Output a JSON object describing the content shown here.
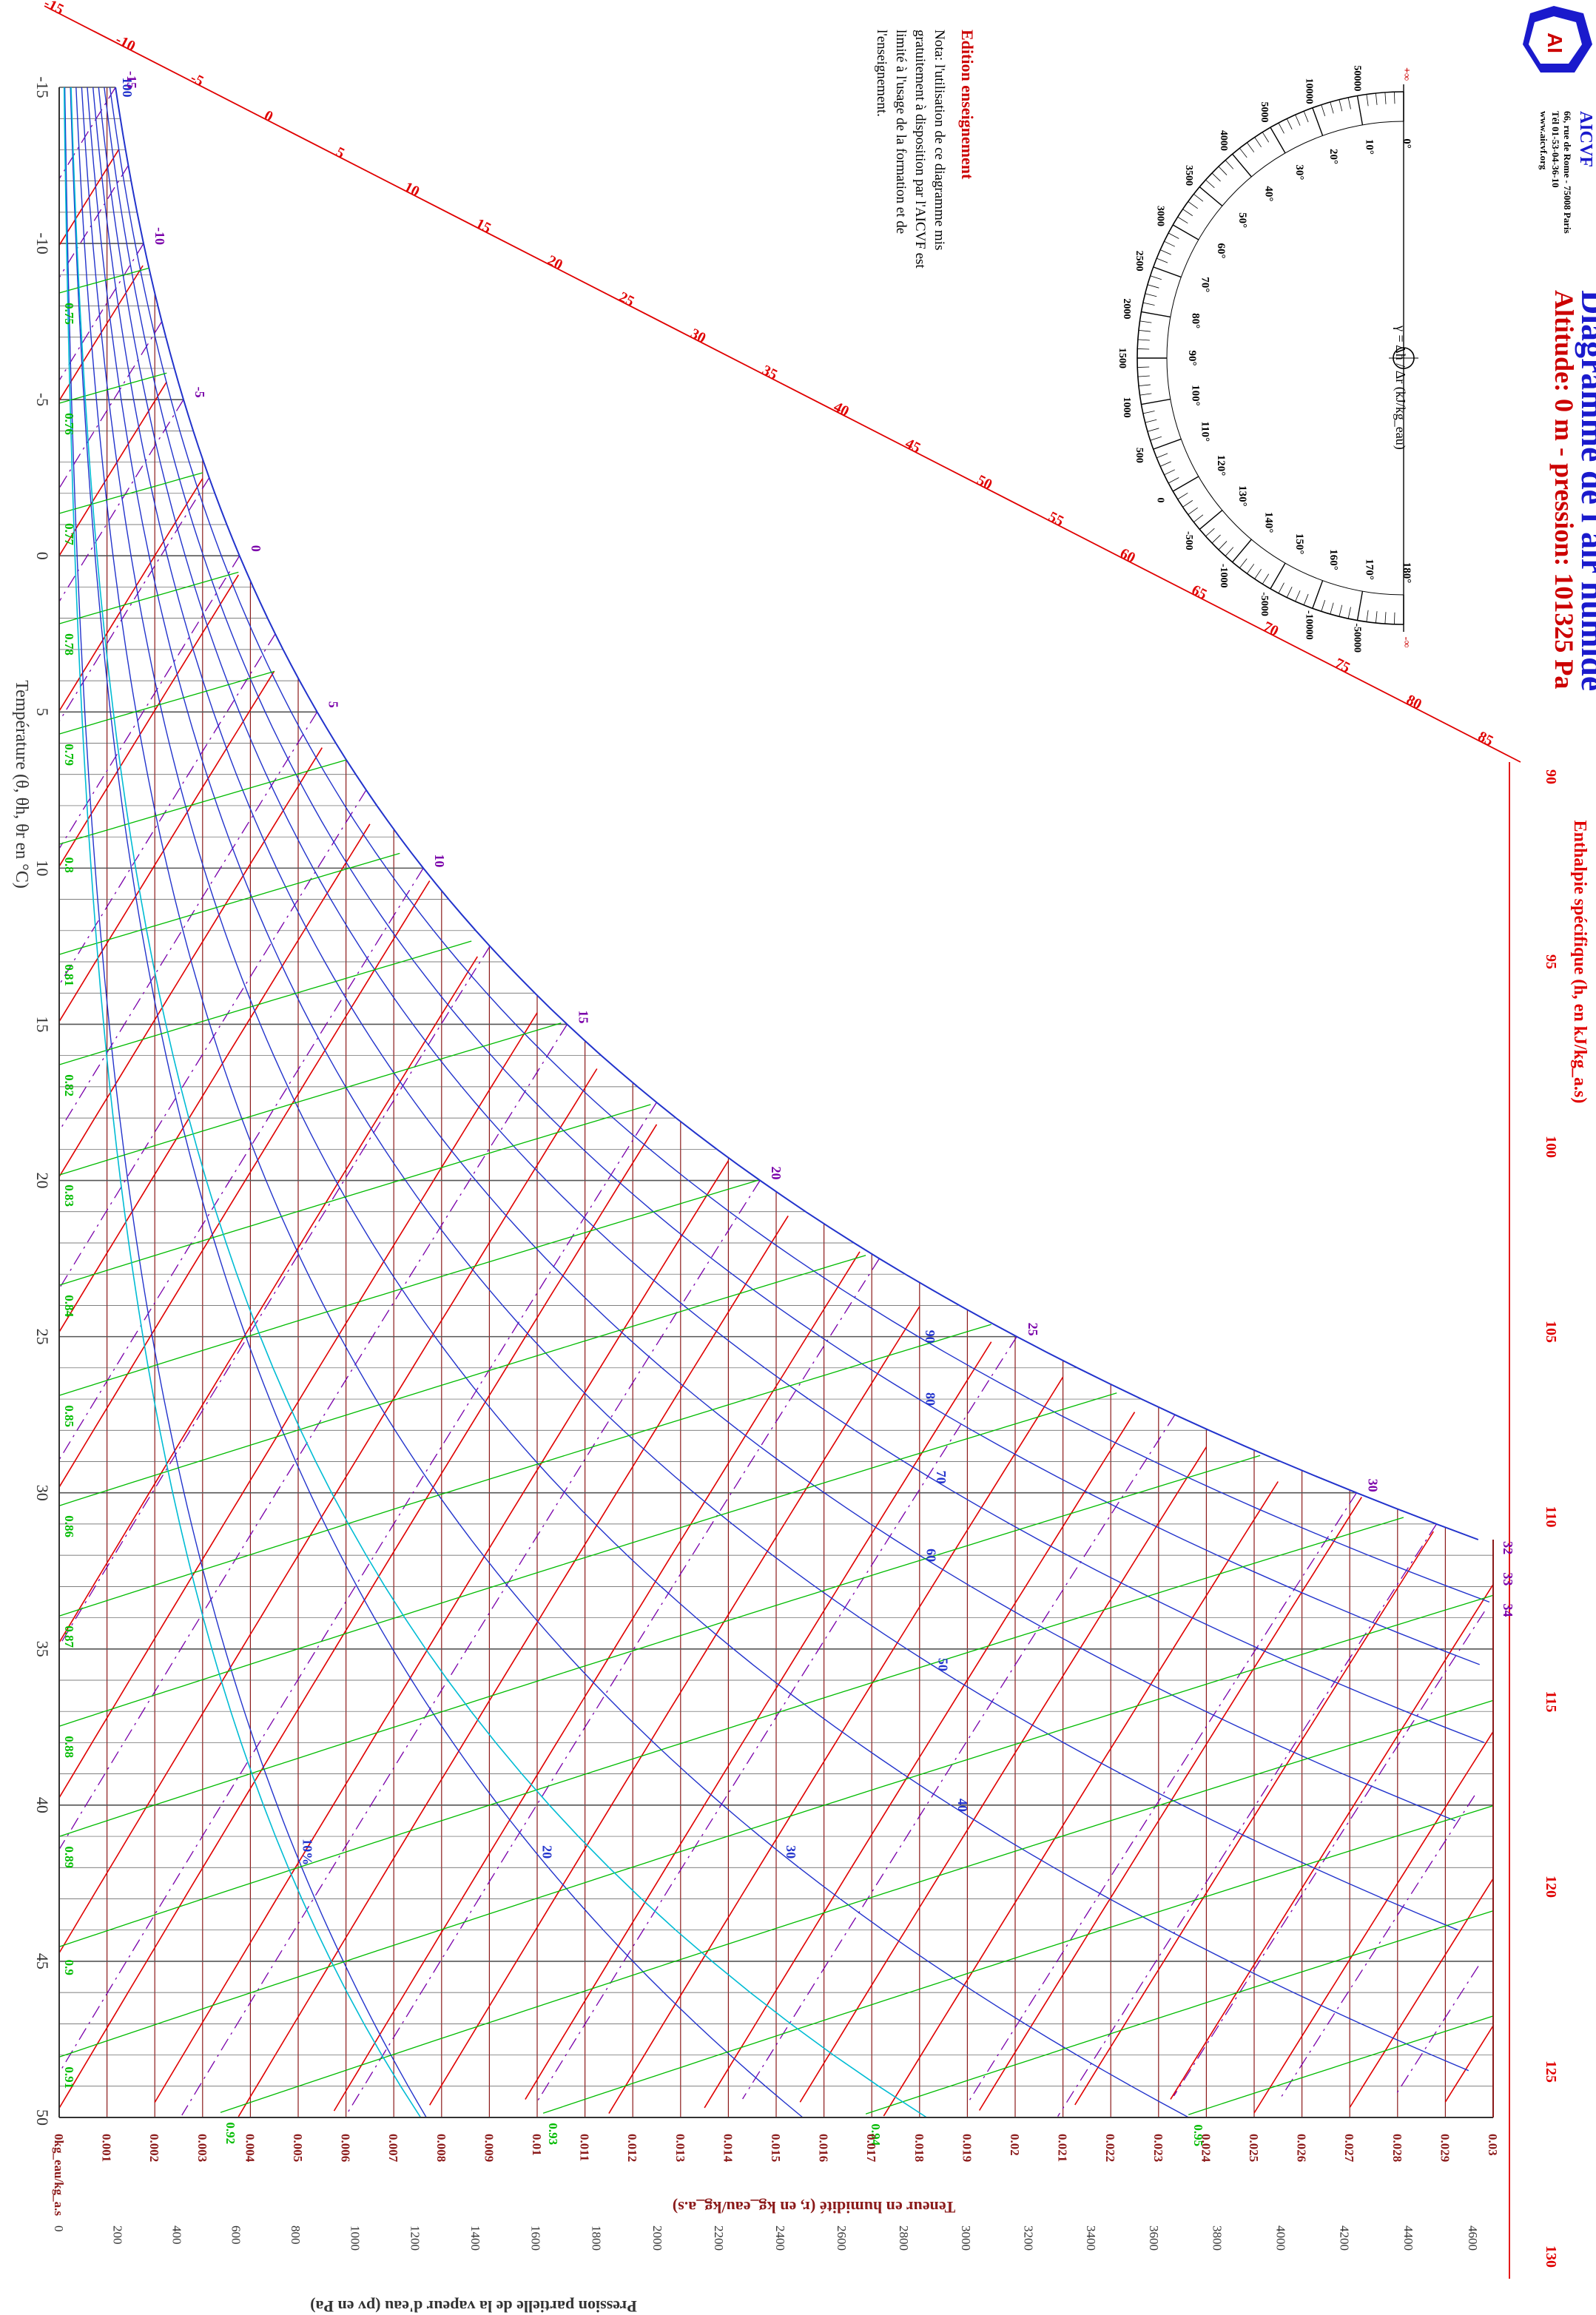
{
  "header": {
    "title": "Diagramme de l'air humide",
    "subtitle": "Altitude: 0 m - pression: 101325 Pa",
    "org": "AICVF",
    "address": [
      "66, rue de Rome - 75008 Paris",
      "Tél 01-53-04-36-10",
      "www.aicvf.org"
    ]
  },
  "notice": {
    "title": "Edition enseignement",
    "text": "Nota: l'utilisation de ce diagramme mis gratuitement à disposition par l'AICVF est limité à l'usage de la formation et de l'enseignement."
  },
  "protractor": {
    "formula": "γ = Δh / Δr (kJ/kg_eau)",
    "degree_labels": [
      "0°",
      "10°",
      "20°",
      "30°",
      "40°",
      "50°",
      "60°",
      "70°",
      "80°",
      "90°",
      "100°",
      "110°",
      "120°",
      "130°",
      "140°",
      "150°",
      "160°",
      "170°",
      "180°"
    ],
    "gamma_labels": [
      "+∞",
      "50000",
      "10000",
      "5000",
      "4000",
      "3500",
      "3000",
      "2500",
      "2000",
      "1500",
      "1000",
      "500",
      "0",
      "-500",
      "-1000",
      "-5000",
      "-10000",
      "-50000",
      "-∞"
    ]
  },
  "chart_data": {
    "type": "psychrometric",
    "title": "Diagramme de l'air humide",
    "axes": {
      "temperature": {
        "label": "Température (θ, θh, θr en °C)",
        "range": [
          -15,
          50
        ],
        "ticks": [
          -15,
          -10,
          -5,
          0,
          5,
          10,
          15,
          20,
          25,
          30,
          35,
          40,
          45,
          50
        ]
      },
      "humidity_ratio": {
        "label": "Teneur en humidité (r, en kg_eau/kg_a.s)",
        "range": [
          0,
          0.03
        ],
        "ticks": [
          "0kg_eau/kg_a.s",
          "0.001",
          "0.002",
          "0.003",
          "0.004",
          "0.005",
          "0.006",
          "0.007",
          "0.008",
          "0.009",
          "0.01",
          "0.011",
          "0.012",
          "0.013",
          "0.014",
          "0.015",
          "0.016",
          "0.017",
          "0.018",
          "0.019",
          "0.02",
          "0.021",
          "0.022",
          "0.023",
          "0.024",
          "0.025",
          "0.026",
          "0.027",
          "0.028",
          "0.029",
          "0.03"
        ]
      },
      "vapor_pressure": {
        "label": "Pression partielle de la vapeur d'eau (pv en Pa)",
        "range": [
          0,
          4600
        ],
        "ticks": [
          "0",
          "200",
          "400",
          "600",
          "800",
          "1000",
          "1200",
          "1400",
          "1600",
          "1800",
          "2000",
          "2200",
          "2400",
          "2600",
          "2800",
          "3000",
          "3200",
          "3400",
          "3600",
          "3800",
          "4000",
          "4200",
          "4400",
          "4600"
        ]
      },
      "enthalpy": {
        "label": "Enthalpie spécifique (h, en kJ/kg_a.s)",
        "diagonal_ticks": [
          "-15",
          "-10",
          "-5",
          "0",
          "5",
          "10",
          "15",
          "20",
          "25",
          "30",
          "35",
          "40",
          "45",
          "50",
          "55",
          "60",
          "65",
          "70",
          "75",
          "80",
          "85"
        ],
        "right_ticks": [
          "90",
          "95",
          "100",
          "105",
          "110",
          "115",
          "120",
          "125",
          "130"
        ]
      }
    },
    "relative_humidity": {
      "values": [
        10,
        20,
        30,
        40,
        50,
        60,
        70,
        80,
        90,
        100
      ],
      "labels": [
        "10%",
        "20",
        "30",
        "40",
        "50",
        "60",
        "70",
        "80",
        "90",
        "100"
      ]
    },
    "wet_bulb_labels": [
      "-15",
      "-10",
      "-5",
      "0",
      "5",
      "10",
      "15",
      "20",
      "25",
      "30",
      "32",
      "33",
      "34"
    ],
    "specific_volume_labels": [
      "0.75",
      "0.76",
      "0.77",
      "0.78",
      "0.79",
      "0.8",
      "0.81",
      "0.82",
      "0.83",
      "0.84",
      "0.85",
      "0.86",
      "0.87",
      "0.88",
      "0.89",
      "0.9",
      "0.91",
      "0.92",
      "0.93",
      "0.94",
      "0.95"
    ],
    "colors": {
      "temperature": "#444444",
      "humidity": "#8b1a1a",
      "enthalpy": "#e00000",
      "wet_bulb": "#7a00aa",
      "relative_humidity": "#2233cc",
      "specific_volume": "#00bb00",
      "cyan": "#00bcd4"
    }
  }
}
